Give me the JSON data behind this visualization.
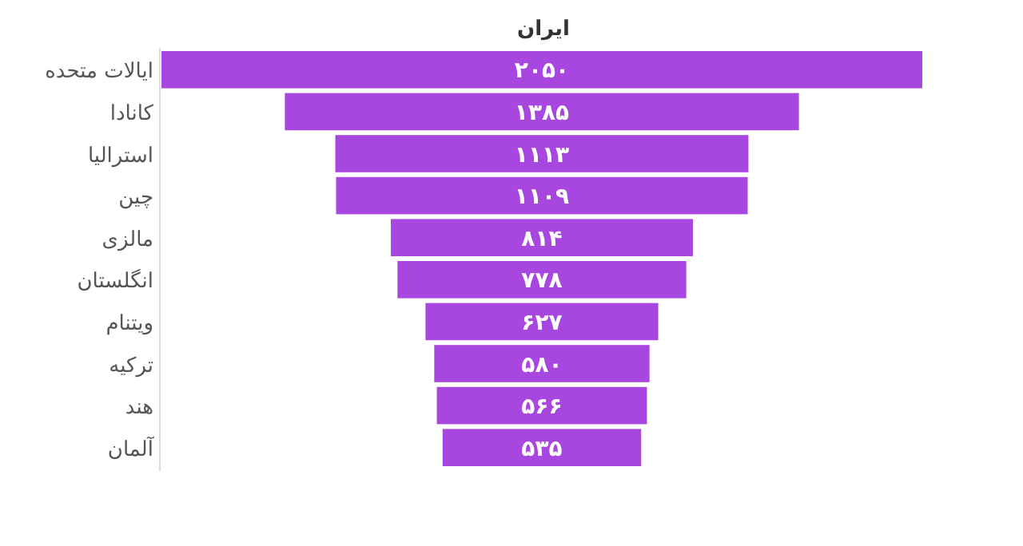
{
  "chart_data": {
    "type": "other",
    "title": "ایران",
    "categories": [
      "ایالات متحده",
      "کانادا",
      "استرالیا",
      "چین",
      "مالزی",
      "انگلستان",
      "ویتنام",
      "ترکیه",
      "هند",
      "آلمان"
    ],
    "values": [
      2050,
      1385,
      1113,
      1109,
      814,
      778,
      627,
      580,
      566,
      535
    ],
    "value_labels": [
      "۲۰۵۰",
      "۱۳۸۵",
      "۱۱۱۳",
      "۱۱۰۹",
      "۸۱۴",
      "۷۷۸",
      "۶۲۷",
      "۵۸۰",
      "۵۶۶",
      "۵۳۵"
    ],
    "color": "#a846e0"
  }
}
